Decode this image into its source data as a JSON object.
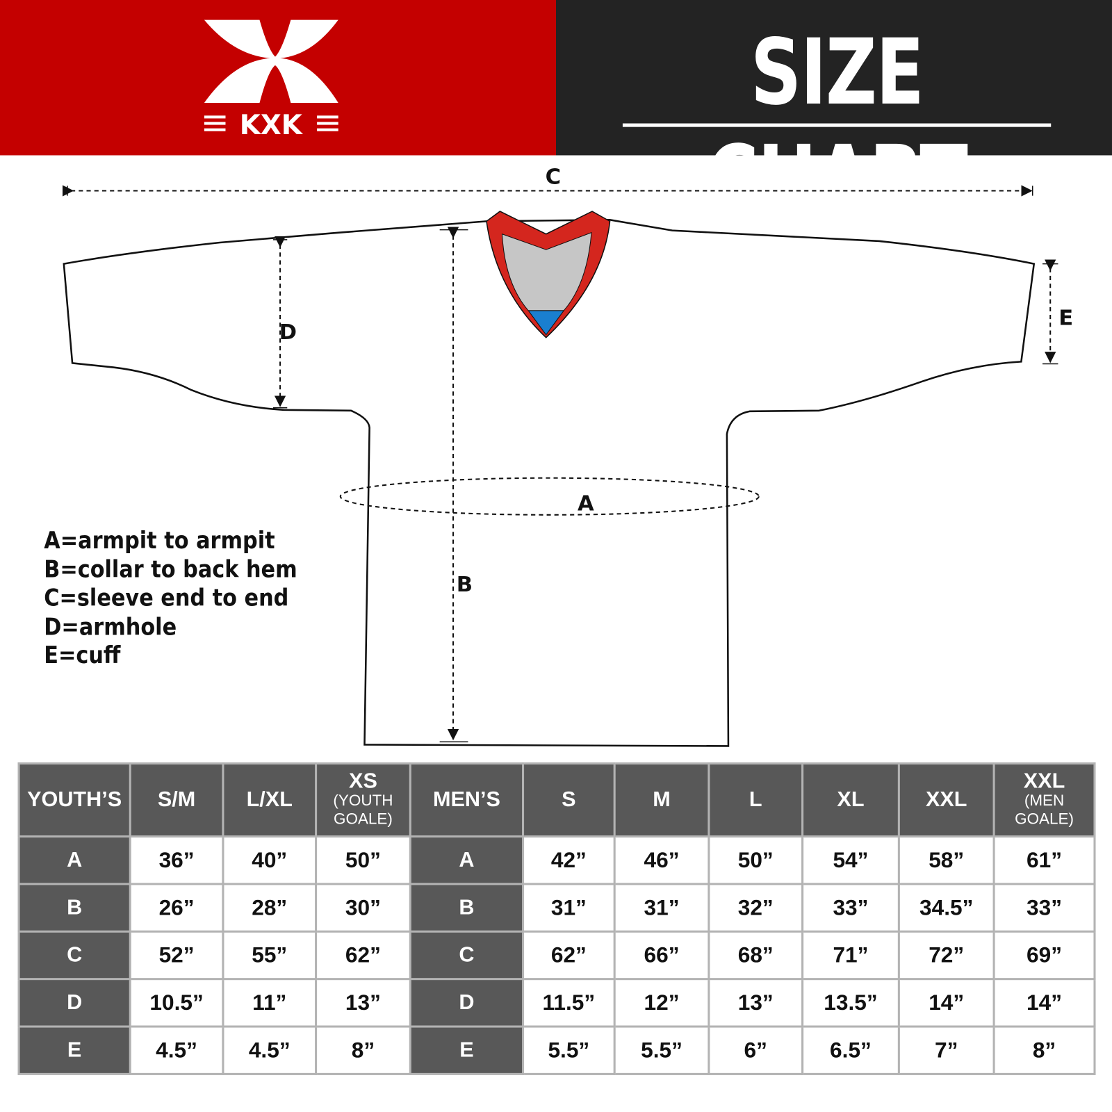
{
  "brand": {
    "logo_text": "KXK",
    "colors": {
      "red": "#c40000",
      "dark": "#232323",
      "gray": "#585858",
      "collar_blue": "#1a7fd0"
    }
  },
  "header": {
    "title": "SIZE CHART"
  },
  "diagram": {
    "labels": {
      "a": "A",
      "b": "B",
      "c": "C",
      "d": "D",
      "e": "E"
    }
  },
  "legend": [
    "A=armpit to armpit",
    "B=collar to back hem",
    "C=sleeve end to end",
    "D=armhole",
    "E=cuff"
  ],
  "table": {
    "youth": {
      "header": "YOUTH’S",
      "columns": [
        {
          "main": "S/M",
          "sub": ""
        },
        {
          "main": "L/XL",
          "sub": ""
        },
        {
          "main": "XS",
          "sub": "(YOUTH GOALE)"
        }
      ]
    },
    "men": {
      "header": "MEN’S",
      "columns": [
        {
          "main": "S",
          "sub": ""
        },
        {
          "main": "M",
          "sub": ""
        },
        {
          "main": "L",
          "sub": ""
        },
        {
          "main": "XL",
          "sub": ""
        },
        {
          "main": "XXL",
          "sub": ""
        },
        {
          "main": "XXL",
          "sub": "(MEN GOALE)"
        }
      ]
    },
    "rows": [
      {
        "label": "A",
        "youth": [
          "36”",
          "40”",
          "50”"
        ],
        "men": [
          "42”",
          "46”",
          "50”",
          "54”",
          "58”",
          "61”"
        ]
      },
      {
        "label": "B",
        "youth": [
          "26”",
          "28”",
          "30”"
        ],
        "men": [
          "31”",
          "31”",
          "32”",
          "33”",
          "34.5”",
          "33”"
        ]
      },
      {
        "label": "C",
        "youth": [
          "52”",
          "55”",
          "62”"
        ],
        "men": [
          "62”",
          "66”",
          "68”",
          "71”",
          "72”",
          "69”"
        ]
      },
      {
        "label": "D",
        "youth": [
          "10.5”",
          "11”",
          "13”"
        ],
        "men": [
          "11.5”",
          "12”",
          "13”",
          "13.5”",
          "14”",
          "14”"
        ]
      },
      {
        "label": "E",
        "youth": [
          "4.5”",
          "4.5”",
          "8”"
        ],
        "men": [
          "5.5”",
          "5.5”",
          "6”",
          "6.5”",
          "7”",
          "8”"
        ]
      }
    ]
  }
}
